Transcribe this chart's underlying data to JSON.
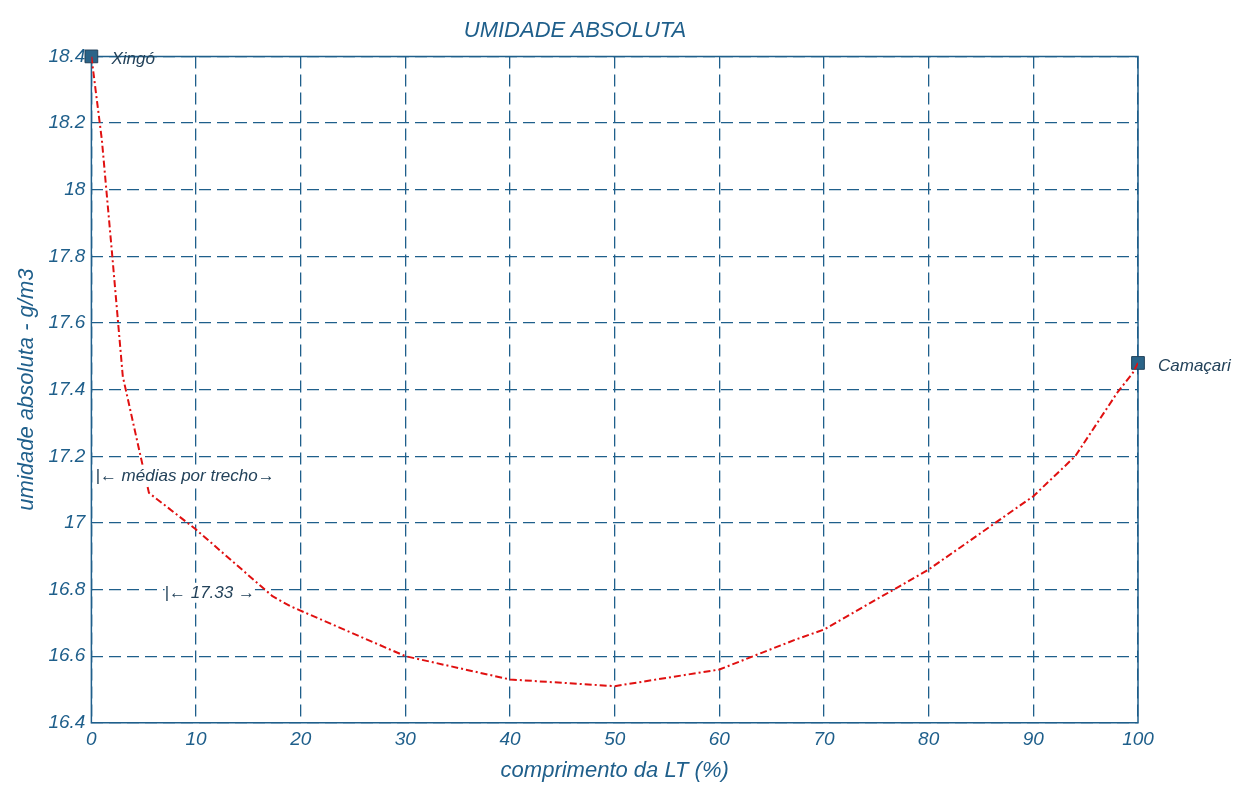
{
  "chart_data": {
    "type": "line",
    "title": "UMIDADE ABSOLUTA",
    "xlabel": "comprimento da LT (%)",
    "ylabel": "umidade absoluta - g/m3",
    "xlim": [
      0,
      100
    ],
    "xticks": [
      0,
      10,
      20,
      30,
      40,
      50,
      60,
      70,
      80,
      90,
      100
    ],
    "ylim": [
      16.4,
      18.4
    ],
    "yticks": [
      16.4,
      16.6,
      16.8,
      17,
      17.2,
      17.4,
      17.6,
      17.8,
      18,
      18.2,
      18.4
    ],
    "grid": true,
    "legend": false,
    "series": [
      {
        "type": "line",
        "color": "#e01010",
        "line_style": "dashed",
        "marker": "none",
        "x": [
          0,
          1,
          2,
          3,
          4.7,
          5.5,
          10,
          17.3,
          19,
          30,
          40,
          50,
          60,
          67.3,
          70,
          80,
          90,
          94,
          98,
          99.5,
          100
        ],
        "values": [
          18.4,
          18.15,
          17.8,
          17.44,
          17.2,
          17.09,
          16.98,
          16.78,
          16.75,
          16.6,
          16.53,
          16.51,
          16.56,
          16.65,
          16.68,
          16.86,
          17.08,
          17.2,
          17.39,
          17.45,
          17.48
        ]
      },
      {
        "type": "scatter",
        "name": "Xingó",
        "color": "#2b6488",
        "marker": "square",
        "x": [
          0
        ],
        "values": [
          18.4
        ]
      },
      {
        "type": "scatter",
        "name": "Camaçari",
        "color": "#2b6488",
        "marker": "square",
        "x": [
          100
        ],
        "values": [
          17.48
        ]
      }
    ],
    "annotations": [
      "|← médias por trecho→",
      "|← 17.33 →"
    ]
  }
}
